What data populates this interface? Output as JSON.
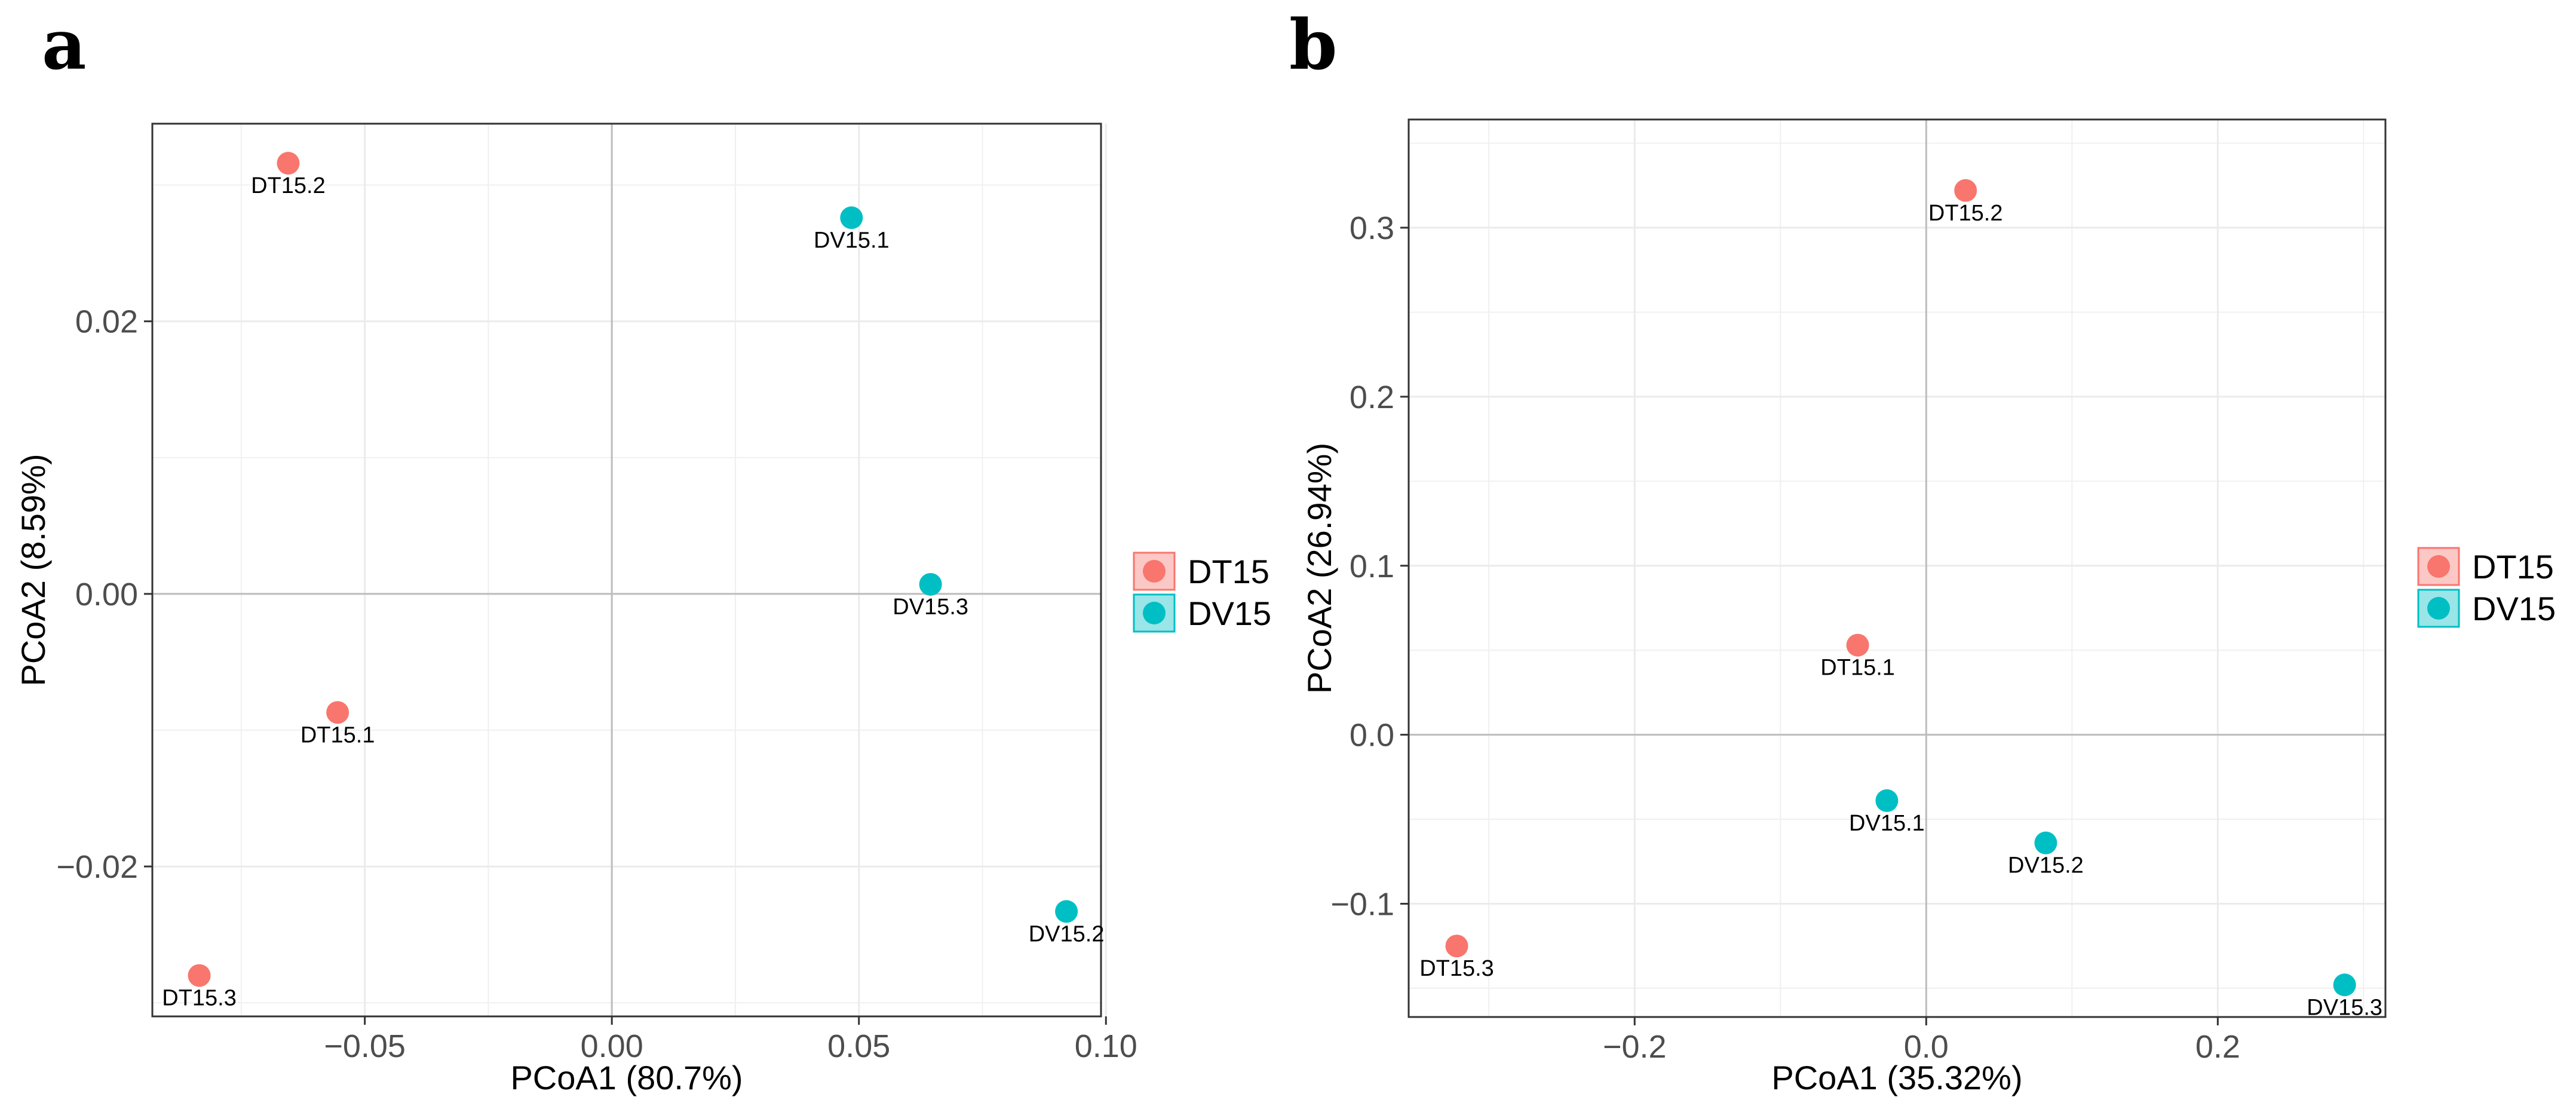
{
  "chart_data": [
    {
      "panel_letter": "a",
      "type": "scatter",
      "xlabel": "PCoA1 (80.7%)",
      "ylabel": "PCoA2 (8.59%)",
      "xlim": [
        -0.093,
        0.099
      ],
      "ylim": [
        -0.031,
        0.0345
      ],
      "xticks": [
        -0.05,
        0.0,
        0.05,
        0.1
      ],
      "xtick_labels": [
        "−0.05",
        "0.00",
        "0.05",
        "0.10"
      ],
      "yticks": [
        -0.02,
        0.0,
        0.02
      ],
      "ytick_labels": [
        "−0.02",
        "0.00",
        "0.02"
      ],
      "grid": true,
      "legend": {
        "placement": "right",
        "entries": [
          {
            "name": "DT15",
            "color": "#F8766D"
          },
          {
            "name": "DV15",
            "color": "#00BFC4"
          }
        ]
      },
      "points": [
        {
          "label": "DT15.2",
          "group": "DT15",
          "x": -0.0655,
          "y": 0.0316
        },
        {
          "label": "DT15.1",
          "group": "DT15",
          "x": -0.0555,
          "y": -0.0087
        },
        {
          "label": "DT15.3",
          "group": "DT15",
          "x": -0.0835,
          "y": -0.028
        },
        {
          "label": "DV15.1",
          "group": "DV15",
          "x": 0.0485,
          "y": 0.0276
        },
        {
          "label": "DV15.3",
          "group": "DV15",
          "x": 0.0645,
          "y": 0.0007
        },
        {
          "label": "DV15.2",
          "group": "DV15",
          "x": 0.092,
          "y": -0.0233
        }
      ]
    },
    {
      "panel_letter": "b",
      "type": "scatter",
      "xlabel": "PCoA1 (35.32%)",
      "ylabel": "PCoA2 (26.94%)",
      "xlim": [
        -0.355,
        0.315
      ],
      "ylim": [
        -0.167,
        0.364
      ],
      "xticks": [
        -0.2,
        0.0,
        0.2
      ],
      "xtick_labels": [
        "−0.2",
        "0.0",
        "0.2"
      ],
      "yticks": [
        -0.1,
        0.0,
        0.1,
        0.2,
        0.3
      ],
      "ytick_labels": [
        "−0.1",
        "0.0",
        "0.1",
        "0.2",
        "0.3"
      ],
      "grid": true,
      "legend": {
        "placement": "right",
        "entries": [
          {
            "name": "DT15",
            "color": "#F8766D"
          },
          {
            "name": "DV15",
            "color": "#00BFC4"
          }
        ]
      },
      "points": [
        {
          "label": "DT15.2",
          "group": "DT15",
          "x": 0.027,
          "y": 0.322
        },
        {
          "label": "DT15.1",
          "group": "DT15",
          "x": -0.047,
          "y": 0.053
        },
        {
          "label": "DT15.3",
          "group": "DT15",
          "x": -0.322,
          "y": -0.125
        },
        {
          "label": "DV15.1",
          "group": "DV15",
          "x": -0.027,
          "y": -0.039
        },
        {
          "label": "DV15.2",
          "group": "DV15",
          "x": 0.082,
          "y": -0.064
        },
        {
          "label": "DV15.3",
          "group": "DV15",
          "x": 0.287,
          "y": -0.148
        }
      ]
    }
  ]
}
